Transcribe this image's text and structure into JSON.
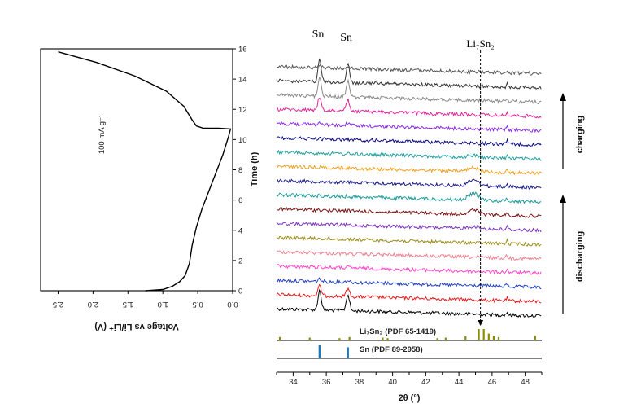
{
  "chart_data": [
    {
      "type": "line",
      "title": "",
      "xlabel": "Voltage vs Li/Li⁺ (V)",
      "ylabel": "Time (h)",
      "x_axis_reversed": true,
      "xlim": [
        0,
        2.75
      ],
      "ylim": [
        0,
        16
      ],
      "xticks": [
        "2.5",
        "2.0",
        "1.5",
        "1.0",
        "0.5",
        "0.0"
      ],
      "yticks": [
        "0",
        "2",
        "4",
        "6",
        "8",
        "10",
        "12",
        "14",
        "16"
      ],
      "annotation": "100 mA g⁻¹",
      "series": [
        {
          "points": [
            [
              1.25,
              0.0
            ],
            [
              1.0,
              0.08
            ],
            [
              0.86,
              0.3
            ],
            [
              0.76,
              0.6
            ],
            [
              0.68,
              1.0
            ],
            [
              0.62,
              1.8
            ],
            [
              0.58,
              3.0
            ],
            [
              0.52,
              4.2
            ],
            [
              0.44,
              5.4
            ],
            [
              0.34,
              6.6
            ],
            [
              0.24,
              7.8
            ],
            [
              0.14,
              9.0
            ],
            [
              0.06,
              10.2
            ],
            [
              0.03,
              10.7
            ],
            [
              0.2,
              10.75
            ],
            [
              0.42,
              10.75
            ],
            [
              0.52,
              10.9
            ],
            [
              0.58,
              11.3
            ],
            [
              0.7,
              12.2
            ],
            [
              0.95,
              13.2
            ],
            [
              1.4,
              14.2
            ],
            [
              1.95,
              15.1
            ],
            [
              2.5,
              15.8
            ]
          ]
        }
      ]
    },
    {
      "type": "line",
      "title": "",
      "xlabel": "2θ (°)",
      "xlim": [
        33,
        49
      ],
      "xticks": [
        "34",
        "36",
        "38",
        "40",
        "42",
        "44",
        "46",
        "48"
      ],
      "peak_labels": [
        "Sn",
        "Sn",
        "Li₇Sn₂"
      ],
      "side_labels": [
        "charging",
        "discharging"
      ],
      "sn_peaks": [
        35.6,
        37.3
      ],
      "li_marker": 45.3,
      "patterns": 18,
      "trace_colors": [
        "#000000",
        "#e41a1c",
        "#1f3fbf",
        "#ff44cc",
        "#f08090",
        "#9b8b1a",
        "#7b2fbe",
        "#7a0f0f",
        "#1c9a9a",
        "#1a1a8c",
        "#f0a020",
        "#20a0a0",
        "#0a0a80",
        "#8a2be2",
        "#e0229a",
        "#888888",
        "#333333",
        "#555555"
      ],
      "reference_patterns": [
        {
          "name": "Li₇Sn₂ (PDF  65-1419)",
          "color": "#8b8b00",
          "sticks": [
            [
              33.2,
              0.3
            ],
            [
              35.0,
              0.25
            ],
            [
              36.8,
              0.2
            ],
            [
              37.4,
              0.3
            ],
            [
              39.4,
              0.25
            ],
            [
              39.7,
              0.2
            ],
            [
              42.7,
              0.2
            ],
            [
              43.2,
              0.25
            ],
            [
              44.4,
              0.35
            ],
            [
              45.2,
              1.0
            ],
            [
              45.5,
              1.0
            ],
            [
              45.8,
              0.6
            ],
            [
              46.1,
              0.4
            ],
            [
              46.4,
              0.3
            ],
            [
              48.6,
              0.4
            ]
          ]
        },
        {
          "name": "Sn (PDF  89-2958)",
          "color": "#1f77b4",
          "sticks": [
            [
              35.6,
              1.0
            ],
            [
              37.3,
              0.85
            ]
          ]
        }
      ]
    }
  ]
}
